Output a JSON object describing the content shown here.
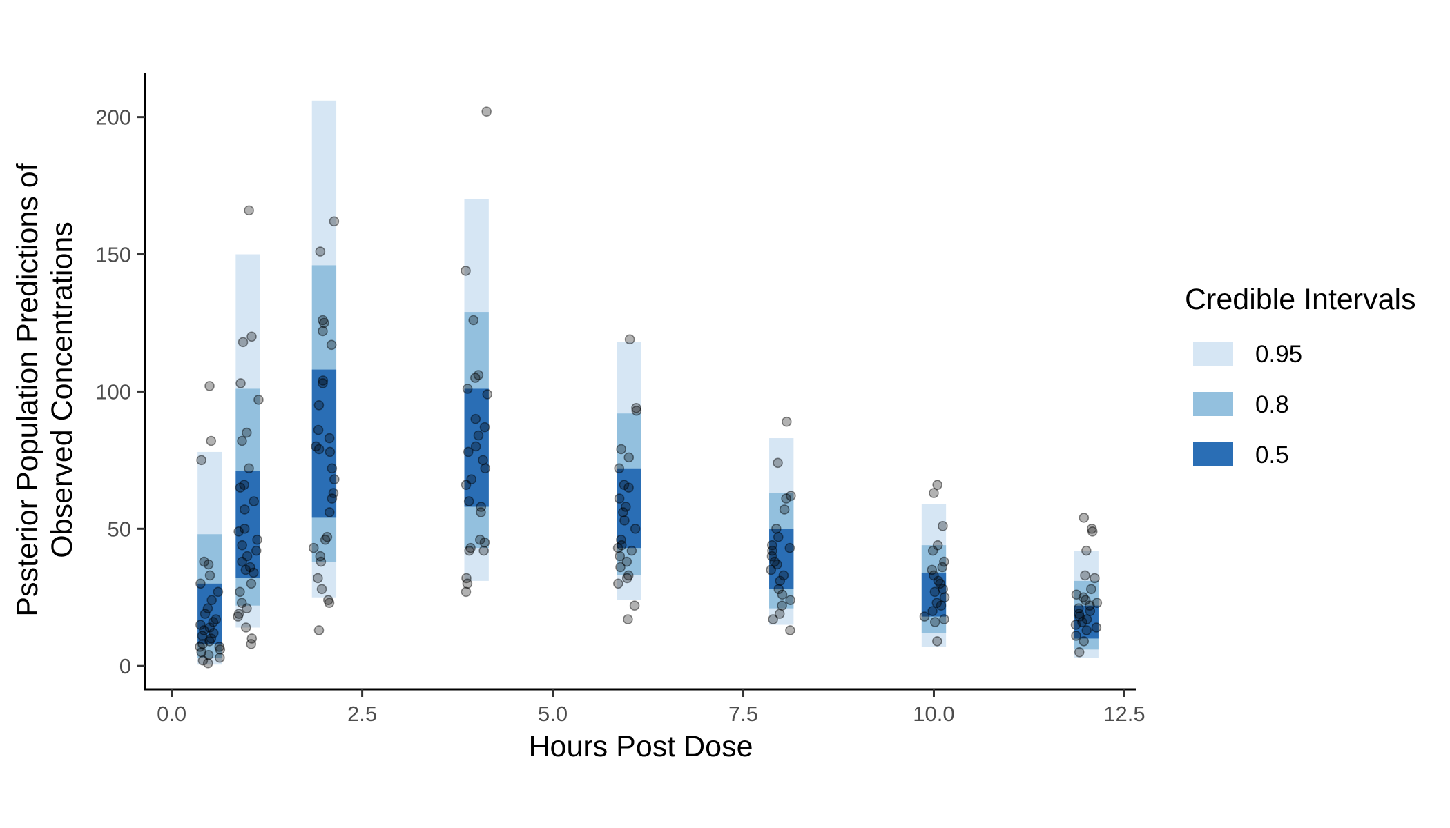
{
  "chart_data": {
    "type": "interval-scatter",
    "title": "",
    "xlabel": "Hours Post Dose",
    "ylabel_line1": "Pssterior Population Predictions of",
    "ylabel_line2": "Observed Concentrations",
    "xlim": [
      -0.35,
      12.65
    ],
    "ylim": [
      -8.5,
      216
    ],
    "x_ticks": [
      0,
      2.5,
      5,
      7.5,
      10,
      12.5
    ],
    "x_tick_labels": [
      "0.0",
      "2.5",
      "5.0",
      "7.5",
      "10.0",
      "12.5"
    ],
    "y_ticks": [
      0,
      50,
      100,
      150,
      200
    ],
    "y_tick_labels": [
      "0",
      "50",
      "100",
      "150",
      "200"
    ],
    "band_width_hours": 0.32,
    "legend": {
      "title": "Credible Intervals",
      "position": "right",
      "entries": [
        {
          "label": "0.95",
          "color": "#d6e6f4"
        },
        {
          "label": "0.8",
          "color": "#93c0de"
        },
        {
          "label": "0.5",
          "color": "#2a6eb5"
        }
      ]
    },
    "intervals": [
      {
        "time": 0.5,
        "ci95": [
          0.5,
          78
        ],
        "ci80": [
          3,
          48
        ],
        "ci50": [
          8,
          30
        ]
      },
      {
        "time": 1,
        "ci95": [
          14,
          150
        ],
        "ci80": [
          22,
          101
        ],
        "ci50": [
          32,
          71
        ]
      },
      {
        "time": 2,
        "ci95": [
          25,
          206
        ],
        "ci80": [
          38,
          146
        ],
        "ci50": [
          54,
          108
        ]
      },
      {
        "time": 4,
        "ci95": [
          31,
          170
        ],
        "ci80": [
          43,
          129
        ],
        "ci50": [
          58,
          101
        ]
      },
      {
        "time": 6,
        "ci95": [
          24,
          118
        ],
        "ci80": [
          33,
          92
        ],
        "ci50": [
          43,
          72
        ]
      },
      {
        "time": 8,
        "ci95": [
          15,
          83
        ],
        "ci80": [
          21,
          63
        ],
        "ci50": [
          28,
          50
        ]
      },
      {
        "time": 10,
        "ci95": [
          7,
          59
        ],
        "ci80": [
          12,
          44
        ],
        "ci50": [
          18,
          34
        ]
      },
      {
        "time": 12,
        "ci95": [
          3,
          42
        ],
        "ci80": [
          6,
          31
        ],
        "ci50": [
          10,
          22
        ]
      }
    ],
    "observations": [
      {
        "time": 0.5,
        "values": [
          102,
          82,
          75,
          38,
          37,
          33,
          30,
          27,
          24,
          21,
          19,
          17,
          16,
          15,
          14,
          13,
          12,
          11,
          10,
          9,
          8,
          7,
          7,
          6,
          5,
          4,
          3,
          2,
          1
        ]
      },
      {
        "time": 1,
        "values": [
          166,
          120,
          118,
          103,
          97,
          85,
          82,
          72,
          66,
          65,
          60,
          57,
          50,
          49,
          46,
          44,
          42,
          40,
          38,
          36,
          35,
          34,
          30,
          27,
          23,
          21,
          19,
          18,
          14,
          10,
          8
        ]
      },
      {
        "time": 2,
        "values": [
          162,
          151,
          126,
          125,
          122,
          117,
          104,
          103,
          95,
          86,
          83,
          80,
          79,
          78,
          72,
          68,
          63,
          61,
          56,
          47,
          46,
          43,
          40,
          38,
          32,
          28,
          24,
          23,
          13
        ]
      },
      {
        "time": 4,
        "values": [
          202,
          144,
          126,
          106,
          105,
          101,
          99,
          90,
          87,
          84,
          80,
          78,
          75,
          72,
          68,
          66,
          60,
          58,
          56,
          46,
          45,
          43,
          42,
          42,
          32,
          30,
          27
        ]
      },
      {
        "time": 6,
        "values": [
          119,
          94,
          93,
          79,
          76,
          72,
          66,
          65,
          61,
          58,
          56,
          53,
          50,
          46,
          44,
          43,
          42,
          40,
          38,
          36,
          33,
          32,
          30,
          22,
          17
        ]
      },
      {
        "time": 8,
        "values": [
          89,
          74,
          62,
          61,
          57,
          50,
          47,
          44,
          43,
          42,
          40,
          38,
          37,
          35,
          33,
          31,
          28,
          26,
          24,
          22,
          19,
          17,
          13
        ]
      },
      {
        "time": 10,
        "values": [
          66,
          63,
          51,
          44,
          42,
          38,
          36,
          35,
          33,
          31,
          30,
          28,
          27,
          25,
          23,
          22,
          20,
          18,
          17,
          16,
          9
        ]
      },
      {
        "time": 12,
        "values": [
          54,
          50,
          49,
          42,
          33,
          32,
          28,
          26,
          25,
          24,
          23,
          22,
          21,
          20,
          19,
          18,
          17,
          16,
          15,
          14,
          13,
          11,
          9,
          5
        ]
      }
    ]
  }
}
